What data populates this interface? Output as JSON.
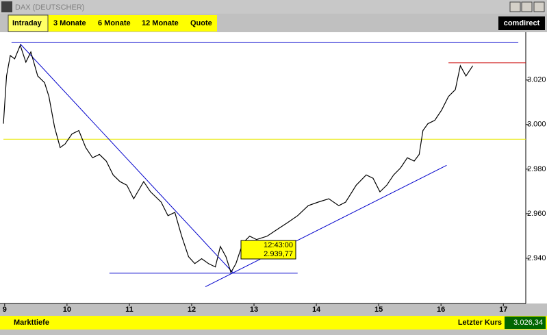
{
  "window": {
    "title": "DAX (DEUTSCHER)",
    "tabs": [
      "Intraday",
      "3 Monate",
      "6 Monate",
      "12 Monate",
      "Quote"
    ],
    "logo": "comdirect"
  },
  "tooltip": {
    "time": "12:43:00",
    "price": "2.939,77"
  },
  "footer": {
    "left": "Markttiefe",
    "right_label": "Letzter Kurs",
    "right_value": "3.026,34"
  },
  "chart_data": {
    "type": "line",
    "x": [
      8.98,
      9.03,
      9.09,
      9.16,
      9.25,
      9.34,
      9.42,
      9.53,
      9.64,
      9.71,
      9.8,
      9.89,
      9.97,
      10.08,
      10.19,
      10.3,
      10.41,
      10.52,
      10.63,
      10.74,
      10.85,
      10.96,
      11.07,
      11.23,
      11.34,
      11.51,
      11.62,
      11.73,
      11.84,
      11.95,
      12.05,
      12.16,
      12.27,
      12.38,
      12.46,
      12.55,
      12.63,
      12.71,
      12.82,
      12.93,
      13.04,
      13.21,
      13.37,
      13.54,
      13.7,
      13.87,
      14.03,
      14.2,
      14.36,
      14.47,
      14.64,
      14.8,
      14.91,
      15.02,
      15.13,
      15.24,
      15.35,
      15.46,
      15.57,
      15.65,
      15.71,
      15.79,
      15.9,
      16.01,
      16.12,
      16.23,
      16.31,
      16.4,
      16.51
    ],
    "series": [
      {
        "color": "#000000",
        "values": [
          3000.4,
          3021.8,
          3031,
          3029.5,
          3035.6,
          3028,
          3032.6,
          3021.8,
          3018.8,
          3012.6,
          2998.9,
          2989.7,
          2991.3,
          2995.8,
          2997.3,
          2989.7,
          2985.1,
          2986.6,
          2983.6,
          2977.4,
          2974.4,
          2972.8,
          2966.7,
          2974.4,
          2969.8,
          2965.2,
          2959.1,
          2960.6,
          2949.9,
          2940.7,
          2937.6,
          2939.8,
          2937.6,
          2936.1,
          2945.3,
          2940.7,
          2933.6,
          2937.6,
          2946.8,
          2949.9,
          2948.4,
          2949.9,
          2952.9,
          2956,
          2959.1,
          2963.6,
          2965.2,
          2966.7,
          2963.6,
          2965.2,
          2972.8,
          2977.4,
          2975.9,
          2969.8,
          2972.8,
          2977.4,
          2980.5,
          2985.1,
          2983.6,
          2986.6,
          2997.3,
          3000.4,
          3001.9,
          3006.5,
          3012.6,
          3015.7,
          3026.4,
          3021.8,
          3026.4
        ]
      }
    ],
    "trend_lines": [
      {
        "color": "#0000cc",
        "x": [
          9.11,
          17.24
        ],
        "y": [
          3036.8,
          3036.8
        ]
      },
      {
        "color": "#cc0000",
        "x": [
          16.12,
          17.36
        ],
        "y": [
          3027.7,
          3027.7
        ]
      },
      {
        "color": "#e8e800",
        "x": [
          8.98,
          17.36
        ],
        "y": [
          2993.4,
          2993.4
        ]
      },
      {
        "color": "#0000cc",
        "x": [
          10.68,
          13.7
        ],
        "y": [
          2933.3,
          2933.3
        ]
      },
      {
        "color": "#0000cc",
        "x": [
          9.25,
          12.66
        ],
        "y": [
          3036.2,
          2933.6
        ]
      },
      {
        "color": "#0000cc",
        "x": [
          12.22,
          16.09
        ],
        "y": [
          2927.2,
          2981.7
        ]
      }
    ],
    "xlim": [
      8.98,
      17.36
    ],
    "ylim": [
      2920,
      3039
    ],
    "xticks": [
      9,
      10,
      11,
      12,
      13,
      14,
      15,
      16,
      17
    ],
    "yticks": [
      {
        "value": 2940,
        "label": "2.940"
      },
      {
        "value": 2960,
        "label": "2.960"
      },
      {
        "value": 2980,
        "label": "2.980"
      },
      {
        "value": 3000,
        "label": "3.000"
      },
      {
        "value": 3020,
        "label": "3.020"
      }
    ]
  }
}
